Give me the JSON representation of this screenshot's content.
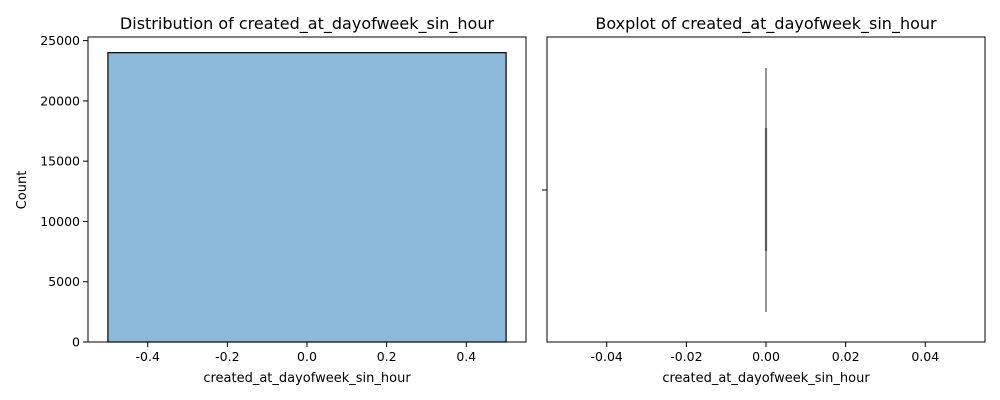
{
  "chart_data": [
    {
      "type": "bar",
      "title": "Distribution of created_at_dayofweek_sin_hour",
      "xlabel": "created_at_dayofweek_sin_hour",
      "ylabel": "Count",
      "xlim": [
        -0.55,
        0.55
      ],
      "ylim": [
        0,
        25300
      ],
      "xticks": [
        "-0.4",
        "-0.2",
        "0.0",
        "0.2",
        "0.4"
      ],
      "xtick_values": [
        -0.4,
        -0.2,
        0.0,
        0.2,
        0.4
      ],
      "yticks": [
        "0",
        "5000",
        "10000",
        "15000",
        "20000",
        "25000"
      ],
      "ytick_values": [
        0,
        5000,
        10000,
        15000,
        20000,
        25000
      ],
      "bins": [
        {
          "x0": -0.5,
          "x1": 0.5,
          "count": 24000
        }
      ],
      "color": "#8cb8da",
      "edgecolor": "#000000",
      "grid": false
    },
    {
      "type": "box",
      "title": "Boxplot of created_at_dayofweek_sin_hour",
      "xlabel": "created_at_dayofweek_sin_hour",
      "ylabel": "",
      "xlim": [
        -0.055,
        0.055
      ],
      "xticks": [
        "-0.04",
        "-0.02",
        "0.00",
        "0.02",
        "0.04"
      ],
      "xtick_values": [
        -0.04,
        -0.02,
        0.0,
        0.02,
        0.04
      ],
      "box": {
        "min": 0,
        "q1": 0,
        "median": 0,
        "q3": 0,
        "max": 0
      },
      "color": "#5a5a5a",
      "grid": false
    }
  ]
}
